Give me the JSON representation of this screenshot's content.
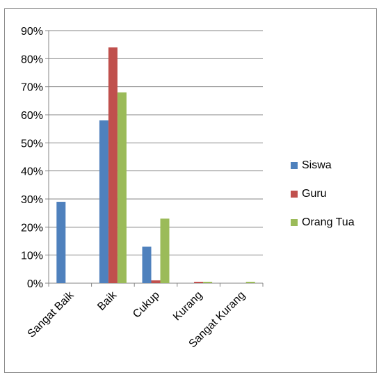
{
  "chart_data": {
    "type": "bar",
    "categories": [
      "Sangat Baik",
      "Baik",
      "Cukup",
      "Kurang",
      "Sangat Kurang"
    ],
    "series": [
      {
        "name": "Siswa",
        "color": "#4f81bd",
        "values": [
          29,
          58,
          13,
          0,
          0
        ]
      },
      {
        "name": "Guru",
        "color": "#c0504d",
        "values": [
          0,
          84,
          1,
          0.5,
          0
        ]
      },
      {
        "name": "Orang Tua",
        "color": "#9bbb59",
        "values": [
          0,
          68,
          23,
          0.5,
          0.5
        ]
      }
    ],
    "ylim": [
      0,
      90
    ],
    "yticks": [
      0,
      10,
      20,
      30,
      40,
      50,
      60,
      70,
      80,
      90
    ],
    "ytick_labels": [
      "0%",
      "10%",
      "20%",
      "30%",
      "40%",
      "50%",
      "60%",
      "70%",
      "80%",
      "90%"
    ],
    "ytick_suffix": "%",
    "grid": true,
    "legend_position": "right",
    "title": "",
    "xlabel": "",
    "ylabel": ""
  }
}
